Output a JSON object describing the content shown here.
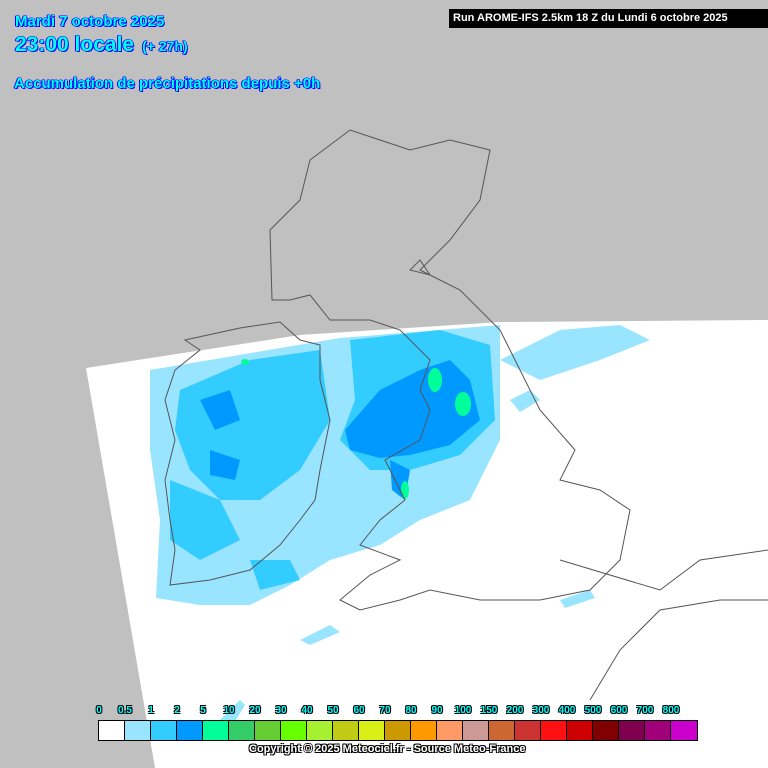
{
  "header": {
    "date": "Mardi 7 octobre 2025",
    "time": "23:00 locale",
    "lead": "(+ 27h)",
    "field": "Accumulation de précipitations depuis +0h",
    "run": "Run AROME-IFS 2.5km 18 Z du Lundi 6 octobre 2025"
  },
  "legend": {
    "labels": [
      "0",
      "0.5",
      "1",
      "2",
      "5",
      "10",
      "20",
      "30",
      "40",
      "50",
      "60",
      "70",
      "80",
      "90",
      "100",
      "150",
      "200",
      "300",
      "400",
      "500",
      "600",
      "700",
      "800"
    ],
    "colors": [
      "#ffffff",
      "#99e5ff",
      "#33ccff",
      "#0099ff",
      "#00ff99",
      "#33cc66",
      "#66cc33",
      "#66ff00",
      "#a6f032",
      "#bfcc13",
      "#d9f016",
      "#cc9900",
      "#ff9900",
      "#ff9966",
      "#cc9999",
      "#cc6633",
      "#cc3333",
      "#ff1111",
      "#cc0000",
      "#800000",
      "#800050",
      "#a0007a",
      "#cc00cc"
    ]
  },
  "map": {
    "outside_domain_color": "#c0c0c0",
    "coastline_color": "#555555"
  },
  "copyright": "Copyright © 2025 Meteociel.fr - Source Meteo-France"
}
